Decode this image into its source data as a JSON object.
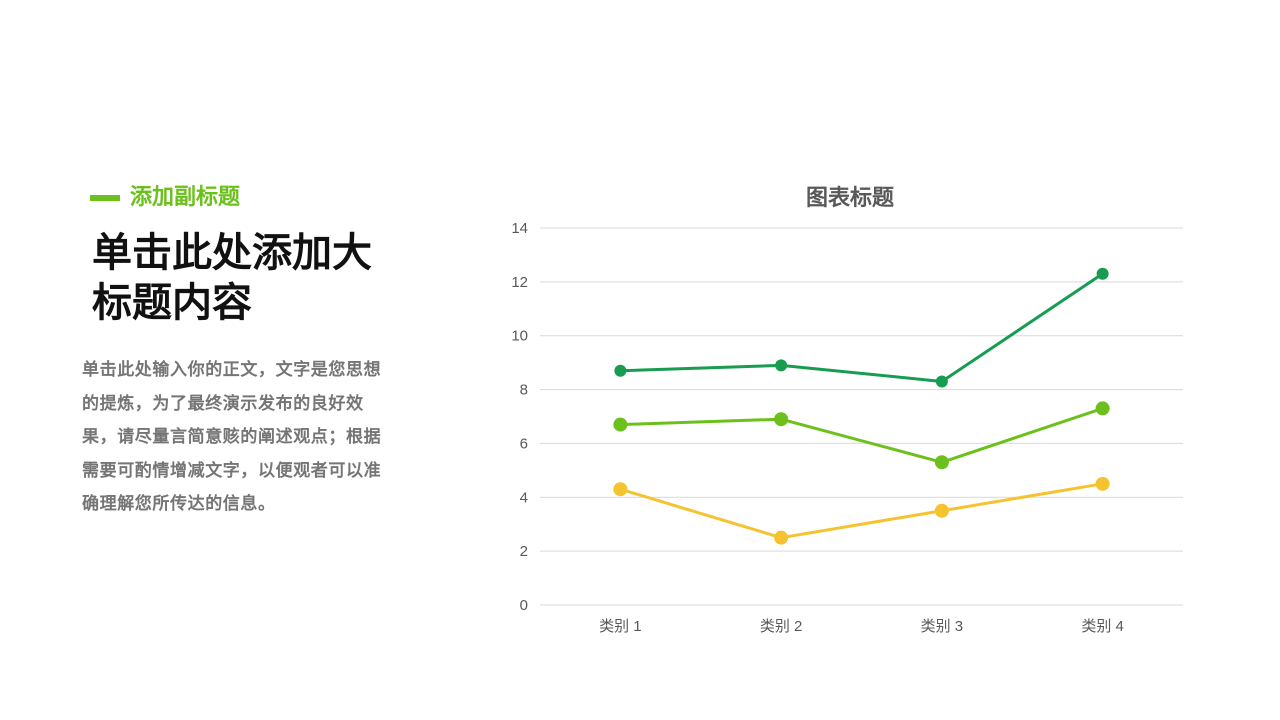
{
  "subtitle": "添加副标题",
  "title": "单击此处添加大标题内容",
  "body": "单击此处输入你的正文，文字是您思想的提炼，为了最终演示发布的良好效果，请尽量言简意赅的阐述观点；根据需要可酌情增减文字，以便观者可以准确理解您所传达的信息。",
  "colors": {
    "accent": "#6cc01c",
    "title": "#111111",
    "body": "#757575",
    "grid": "#d9d9d9",
    "axis_text": "#595959"
  },
  "chart_data": {
    "type": "line",
    "title": "图表标题",
    "categories": [
      "类别 1",
      "类别 2",
      "类别 3",
      "类别 4"
    ],
    "ylim": [
      0,
      14
    ],
    "yticks": [
      0,
      2,
      4,
      6,
      8,
      10,
      12,
      14
    ],
    "grid": true,
    "legend": "none",
    "series": [
      {
        "color": "#179c52",
        "values": [
          8.7,
          8.9,
          8.3,
          12.3
        ]
      },
      {
        "color": "#6cc01c",
        "values": [
          6.7,
          6.9,
          5.3,
          7.3
        ]
      },
      {
        "color": "#f5c230",
        "values": [
          4.3,
          2.5,
          3.5,
          4.5
        ]
      }
    ]
  }
}
